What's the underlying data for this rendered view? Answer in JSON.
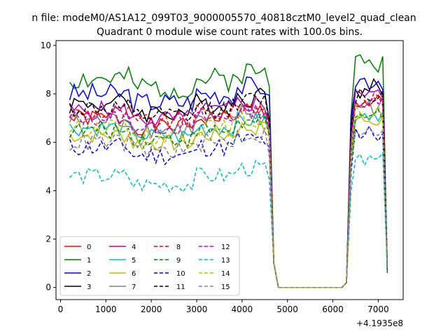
{
  "chart_data": {
    "type": "line",
    "suptitle": "n file: modeM0/AS1A12_099T03_9000005570_40818cztM0_level2_quad_clean",
    "title": "Quadrant 0 module wise count rates with 100.0s bins.",
    "xlabel": "",
    "ylabel": "",
    "x_offset_label": "+4.1935e8",
    "xlim": [
      -100,
      7550
    ],
    "ylim": [
      -0.5,
      10.2
    ],
    "xticks": [
      0,
      1000,
      2000,
      3000,
      4000,
      5000,
      6000,
      7000
    ],
    "yticks": [
      0,
      2,
      4,
      6,
      8,
      10
    ],
    "grid": false,
    "legend": {
      "placement": "lower-left",
      "columns": 4
    },
    "series": [
      {
        "name": "0",
        "color": "#ff0000",
        "dash": "solid",
        "base": 7.0,
        "amp": 0.35,
        "seed": 1
      },
      {
        "name": "1",
        "color": "#008000",
        "dash": "solid",
        "base": 8.6,
        "amp": 0.5,
        "seed": 2
      },
      {
        "name": "2",
        "color": "#0000ff",
        "dash": "solid",
        "base": 8.0,
        "amp": 0.45,
        "seed": 3
      },
      {
        "name": "3",
        "color": "#000000",
        "dash": "solid",
        "base": 7.6,
        "amp": 0.45,
        "seed": 4
      },
      {
        "name": "4",
        "color": "#bf00bf",
        "dash": "solid",
        "base": 7.3,
        "amp": 0.4,
        "seed": 5
      },
      {
        "name": "5",
        "color": "#00bfbf",
        "dash": "solid",
        "base": 6.6,
        "amp": 0.35,
        "seed": 6
      },
      {
        "name": "6",
        "color": "#bfbf00",
        "dash": "solid",
        "base": 6.3,
        "amp": 0.35,
        "seed": 7
      },
      {
        "name": "7",
        "color": "#808080",
        "dash": "solid",
        "base": 6.9,
        "amp": 0.4,
        "seed": 8
      },
      {
        "name": "8",
        "color": "#ff0000",
        "dash": "dashed",
        "base": 7.2,
        "amp": 0.35,
        "seed": 9
      },
      {
        "name": "9",
        "color": "#008000",
        "dash": "dashed",
        "base": 6.5,
        "amp": 0.35,
        "seed": 10
      },
      {
        "name": "10",
        "color": "#0000ff",
        "dash": "dashed",
        "base": 5.8,
        "amp": 0.4,
        "seed": 11
      },
      {
        "name": "11",
        "color": "#000000",
        "dash": "dashed",
        "base": 7.4,
        "amp": 0.4,
        "seed": 12
      },
      {
        "name": "12",
        "color": "#bf00bf",
        "dash": "dashed",
        "base": 7.0,
        "amp": 0.35,
        "seed": 13
      },
      {
        "name": "13",
        "color": "#00bfbf",
        "dash": "dashed",
        "base": 4.6,
        "amp": 0.35,
        "seed": 14
      },
      {
        "name": "14",
        "color": "#bfbf00",
        "dash": "dashed",
        "base": 6.6,
        "amp": 0.35,
        "seed": 15
      },
      {
        "name": "15",
        "color": "#808080",
        "dash": "dashed",
        "base": 6.0,
        "amp": 0.4,
        "seed": 16
      }
    ],
    "x": {
      "start": 200,
      "step": 100,
      "end": 7200
    }
  }
}
